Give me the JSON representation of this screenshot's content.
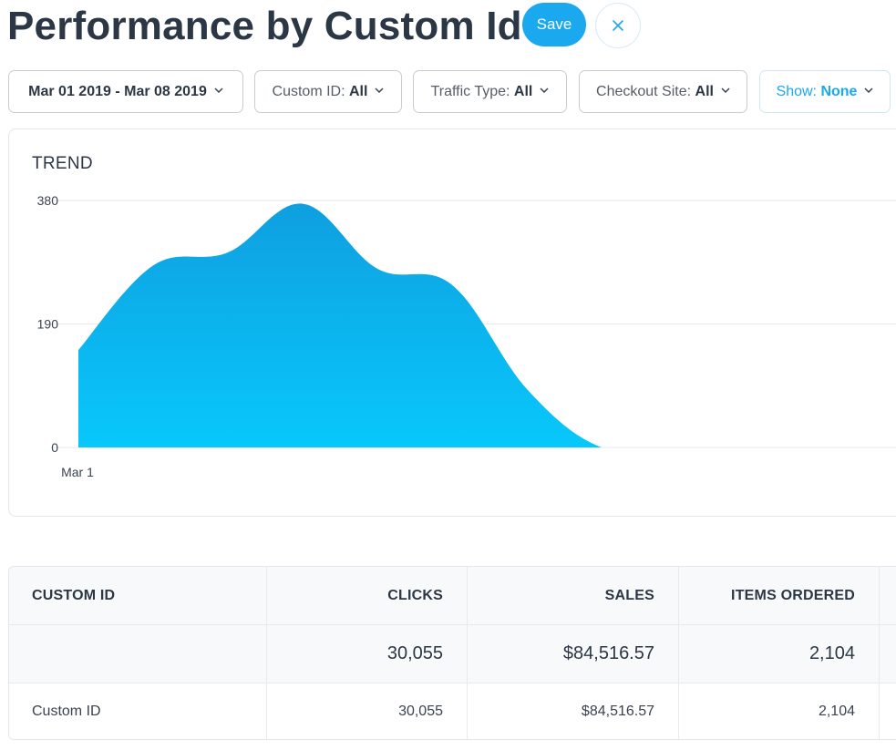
{
  "header": {
    "title": "Performance by Custom Id",
    "save_label": "Save",
    "close_icon": "close-icon"
  },
  "filters": {
    "date_range": "Mar 01 2019 - Mar 08 2019",
    "custom_id": {
      "label": "Custom ID:",
      "value": "All"
    },
    "traffic_type": {
      "label": "Traffic Type:",
      "value": "All"
    },
    "checkout_site": {
      "label": "Checkout Site:",
      "value": "All"
    },
    "show": {
      "label": "Show:",
      "value": "None"
    }
  },
  "colors": {
    "accent": "#1aa8ee",
    "area_top": "#0f9fe0",
    "area_bottom": "#08c8fb"
  },
  "chart_data": {
    "type": "area",
    "title": "TREND",
    "y_ticks": [
      "380",
      "190",
      "0"
    ],
    "ylim": [
      0,
      380
    ],
    "x_tick_labels": [
      "Mar 1"
    ],
    "grid": true,
    "x": [
      0,
      1,
      2,
      3,
      4,
      5,
      6,
      7,
      8,
      9
    ],
    "values": [
      150,
      280,
      300,
      375,
      275,
      250,
      90,
      0,
      0,
      0
    ]
  },
  "table": {
    "columns": [
      "CUSTOM ID",
      "CLICKS",
      "SALES",
      "ITEMS ORDERED"
    ],
    "totals": [
      "",
      "30,055",
      "$84,516.57",
      "2,104"
    ],
    "rows": [
      [
        "Custom ID",
        "30,055",
        "$84,516.57",
        "2,104"
      ]
    ]
  }
}
